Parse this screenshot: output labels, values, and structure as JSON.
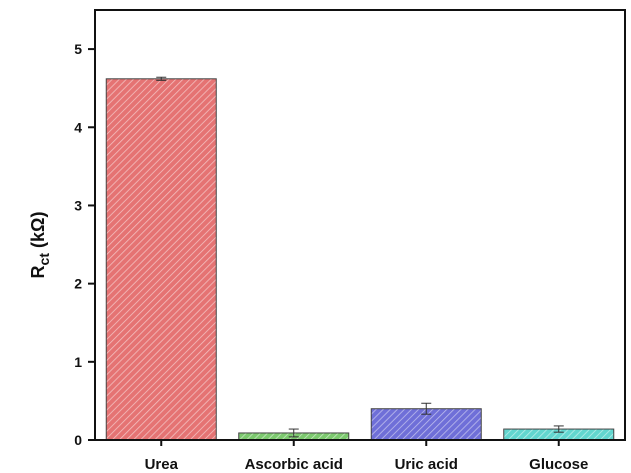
{
  "chart_data": {
    "type": "bar",
    "title": "",
    "xlabel": "",
    "ylabel": "R",
    "ylabel_sub": "ct",
    "ylabel_unit": " (kΩ)",
    "ylim": [
      0,
      5.5
    ],
    "yticks": [
      "0",
      "1",
      "2",
      "3",
      "4",
      "5"
    ],
    "categories": [
      "Urea",
      "Ascorbic acid",
      "Uric acid",
      "Glucose"
    ],
    "values": [
      4.62,
      0.09,
      0.4,
      0.14
    ],
    "errors": [
      0.02,
      0.05,
      0.07,
      0.04
    ],
    "colors": [
      "#e57373",
      "#7cc96e",
      "#6f6fd8",
      "#62d6cf"
    ],
    "hatch": "diagonal",
    "grid": false,
    "legend": "none"
  }
}
